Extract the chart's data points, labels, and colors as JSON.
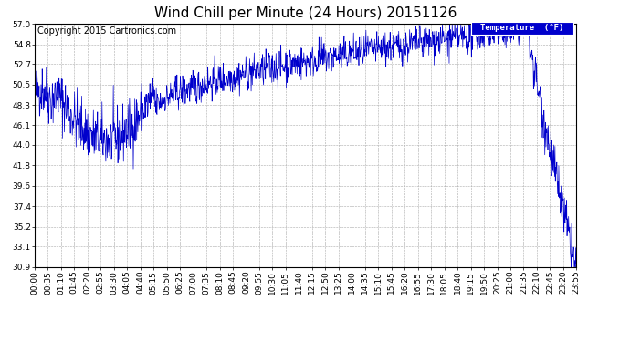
{
  "title": "Wind Chill per Minute (24 Hours) 20151126",
  "copyright": "Copyright 2015 Cartronics.com",
  "legend_label": "Temperature  (°F)",
  "legend_bg": "#0000cc",
  "legend_text_color": "#ffffff",
  "line_color": "#0000cc",
  "bg_color": "#ffffff",
  "plot_bg_color": "#ffffff",
  "ylim": [
    30.9,
    57.0
  ],
  "yticks": [
    30.9,
    33.1,
    35.2,
    37.4,
    39.6,
    41.8,
    44.0,
    46.1,
    48.3,
    50.5,
    52.7,
    54.8,
    57.0
  ],
  "xtick_labels": [
    "00:00",
    "00:35",
    "01:10",
    "01:45",
    "02:20",
    "02:55",
    "03:30",
    "04:05",
    "04:40",
    "05:15",
    "05:50",
    "06:25",
    "07:00",
    "07:35",
    "08:10",
    "08:45",
    "09:20",
    "09:55",
    "10:30",
    "11:05",
    "11:40",
    "12:15",
    "12:50",
    "13:25",
    "14:00",
    "14:35",
    "15:10",
    "15:45",
    "16:20",
    "16:55",
    "17:30",
    "18:05",
    "18:40",
    "19:15",
    "19:50",
    "20:25",
    "21:00",
    "21:35",
    "22:10",
    "22:45",
    "23:20",
    "23:55"
  ],
  "grid_color": "#aaaaaa",
  "grid_linestyle": "--",
  "title_fontsize": 11,
  "tick_fontsize": 6.5,
  "copyright_fontsize": 7
}
